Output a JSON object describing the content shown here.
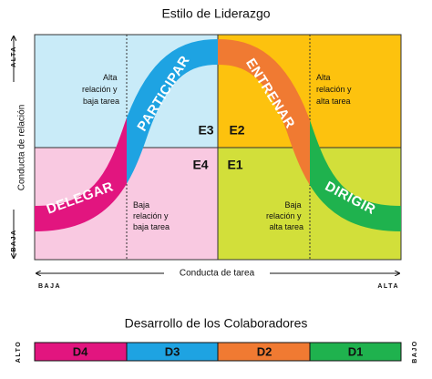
{
  "title": "Estilo de Liderazgo",
  "y_axis": {
    "label": "Conducta de relación",
    "high": "ALTA",
    "low": "BAJA"
  },
  "x_axis": {
    "label": "Conducta de tarea",
    "low": "BAJA",
    "high": "ALTA"
  },
  "quadrants": [
    {
      "code": "E3",
      "style": "PARTICIPAR",
      "note": [
        "Alta",
        "relación y",
        "baja tarea"
      ]
    },
    {
      "code": "E2",
      "style": "ENTRENAR",
      "note": [
        "Alta",
        "relación y",
        "alta tarea"
      ]
    },
    {
      "code": "E4",
      "style": "DELEGAR",
      "note": [
        "Baja",
        "relación y",
        "baja tarea"
      ]
    },
    {
      "code": "E1",
      "style": "DIRIGIR",
      "note": [
        "Baja",
        "relación y",
        "alta tarea"
      ]
    }
  ],
  "development": {
    "title": "Desarrollo de los Colaboradores",
    "high": "ALTO",
    "low": "BAJO",
    "stages": [
      "D4",
      "D3",
      "D2",
      "D1"
    ]
  }
}
